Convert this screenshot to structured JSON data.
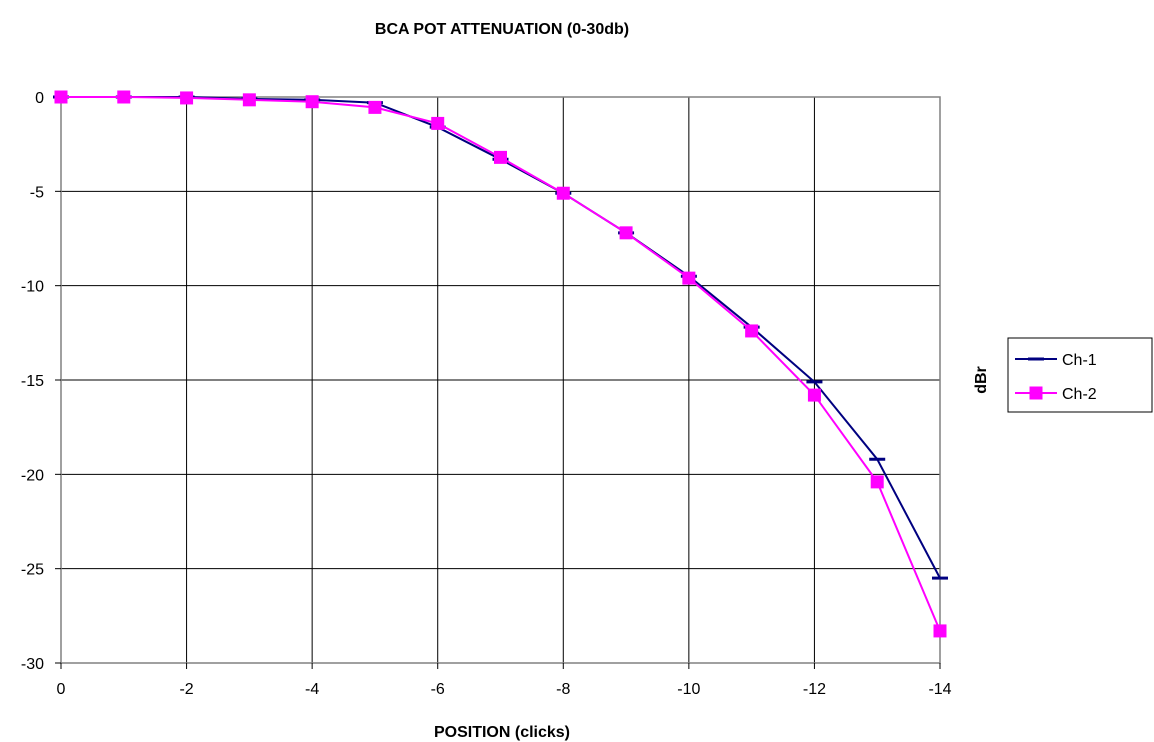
{
  "chart_data": {
    "type": "line",
    "title": "BCA POT ATTENUATION (0-30db)",
    "xlabel": "POSITION (clicks)",
    "ylabel": "dBr",
    "xlim": [
      0,
      -14
    ],
    "ylim": [
      -30,
      0
    ],
    "x_ticks": [
      "0",
      "-2",
      "-4",
      "-6",
      "-8",
      "-10",
      "-12",
      "-14"
    ],
    "y_ticks": [
      "0",
      "-5",
      "-10",
      "-15",
      "-20",
      "-25",
      "-30"
    ],
    "grid": true,
    "legend_position": "right",
    "x": [
      0,
      -1,
      -2,
      -3,
      -4,
      -5,
      -6,
      -7,
      -8,
      -9,
      -10,
      -11,
      -12,
      -13,
      -14
    ],
    "series": [
      {
        "name": "Ch-1",
        "color": "#000080",
        "marker": "dash",
        "values": [
          0,
          0,
          0,
          -0.1,
          -0.15,
          -0.3,
          -1.6,
          -3.3,
          -5.1,
          -7.2,
          -9.5,
          -12.2,
          -15.1,
          -19.2,
          -25.5
        ]
      },
      {
        "name": "Ch-2",
        "color": "#FF00FF",
        "marker": "square",
        "values": [
          0,
          0,
          -0.05,
          -0.15,
          -0.25,
          -0.55,
          -1.4,
          -3.2,
          -5.1,
          -7.2,
          -9.6,
          -12.4,
          -15.8,
          -20.4,
          -28.3
        ]
      }
    ]
  }
}
